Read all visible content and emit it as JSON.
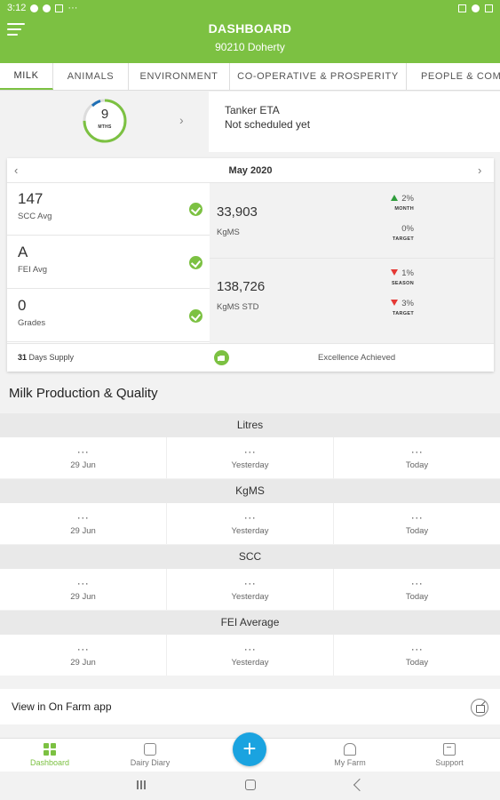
{
  "status_bar": {
    "time": "3:12",
    "more": "···"
  },
  "header": {
    "title": "DASHBOARD",
    "subtitle": "90210 Doherty"
  },
  "tabs": [
    {
      "label": "MILK",
      "active": true
    },
    {
      "label": "ANIMALS"
    },
    {
      "label": "ENVIRONMENT"
    },
    {
      "label": "CO-OPERATIVE & PROSPERITY"
    },
    {
      "label": "PEOPLE & COMMUNITY"
    }
  ],
  "ring": {
    "value": "9",
    "unit": "MTHS",
    "progress": 0.75
  },
  "tanker": {
    "title": "Tanker ETA",
    "status": "Not scheduled yet"
  },
  "summary": {
    "month": "May 2020",
    "left": [
      {
        "value": "147",
        "label": "SCC Avg"
      },
      {
        "value": "A",
        "label": "FEI Avg"
      },
      {
        "value": "0",
        "label": "Grades"
      }
    ],
    "right": [
      {
        "value": "33,903",
        "label": "KgMS",
        "indicators": [
          {
            "direction": "up",
            "pct": "2%",
            "caption": "MONTH"
          },
          {
            "direction": "none",
            "pct": "0%",
            "caption": "TARGET"
          }
        ]
      },
      {
        "value": "138,726",
        "label": "KgMS STD",
        "indicators": [
          {
            "direction": "down",
            "pct": "1%",
            "caption": "SEASON"
          },
          {
            "direction": "down",
            "pct": "3%",
            "caption": "TARGET"
          }
        ]
      }
    ],
    "supply_days": "31",
    "supply_label": "Days Supply",
    "excellence": "Excellence Achieved"
  },
  "production": {
    "title": "Milk Production & Quality",
    "metrics": [
      {
        "name": "Litres",
        "cols": [
          {
            "value": "···",
            "day": "29 Jun"
          },
          {
            "value": "···",
            "day": "Yesterday"
          },
          {
            "value": "···",
            "day": "Today"
          }
        ]
      },
      {
        "name": "KgMS",
        "cols": [
          {
            "value": "···",
            "day": "29 Jun"
          },
          {
            "value": "···",
            "day": "Yesterday"
          },
          {
            "value": "···",
            "day": "Today"
          }
        ]
      },
      {
        "name": "SCC",
        "cols": [
          {
            "value": "···",
            "day": "29 Jun"
          },
          {
            "value": "···",
            "day": "Yesterday"
          },
          {
            "value": "···",
            "day": "Today"
          }
        ]
      },
      {
        "name": "FEI Average",
        "cols": [
          {
            "value": "···",
            "day": "29 Jun"
          },
          {
            "value": "···",
            "day": "Yesterday"
          },
          {
            "value": "···",
            "day": "Today"
          }
        ]
      }
    ]
  },
  "farm_link": {
    "label": "View in On Farm app"
  },
  "bottom_nav": [
    {
      "label": "Dashboard",
      "icon": "dashboard-grid-icon",
      "active": true
    },
    {
      "label": "Dairy Diary",
      "icon": "dairy-diary-icon"
    },
    {
      "label": "My Farm",
      "icon": "my-farm-icon"
    },
    {
      "label": "Support",
      "icon": "support-icon"
    }
  ],
  "fab": {
    "symbol": "+"
  },
  "colors": {
    "brand_green": "#7cc142",
    "fab_blue": "#1aa3e0",
    "up": "#2f9d3c",
    "down": "#e53935",
    "ring_blue": "#1e6fb5"
  }
}
